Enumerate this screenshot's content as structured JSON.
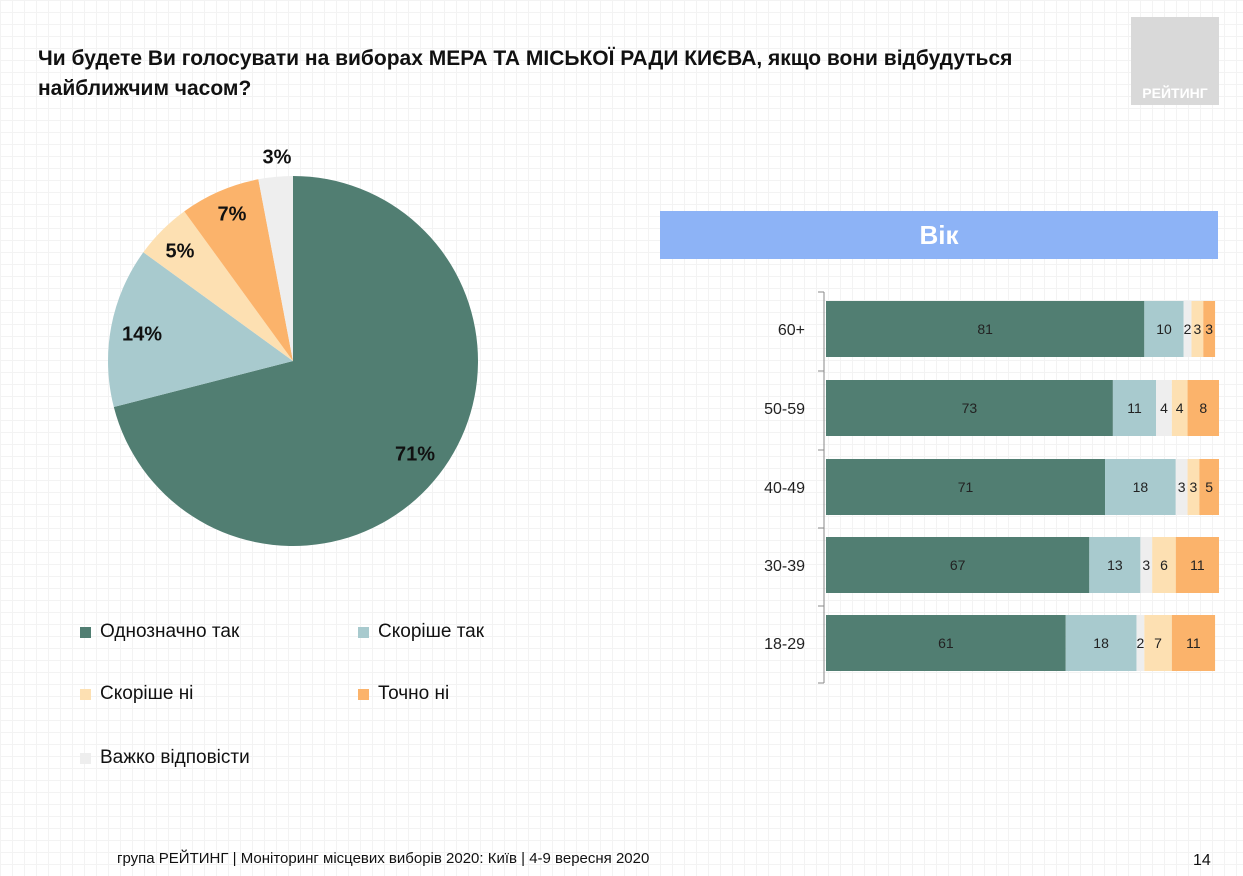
{
  "title": "Чи будете Ви голосувати на виборах МЕРА ТА МІСЬКОЇ РАДИ КИЄВА, якщо вони відбудуться найближчим часом?",
  "logo_text": "РЕЙТИНГ",
  "footer": "група РЕЙТИНГ | Моніторинг місцевих виборів 2020: Київ | 4-9 вересня 2020",
  "page_number": "14",
  "chart_data": [
    {
      "type": "pie",
      "categories": [
        "Однозначно так",
        "Скоріше так",
        "Скоріше ні",
        "Точно ні",
        "Важко відповісти"
      ],
      "values": [
        71,
        14,
        5,
        7,
        3
      ],
      "labels": [
        "71%",
        "14%",
        "5%",
        "7%",
        "3%"
      ],
      "colors": [
        "#517e72",
        "#a8cace",
        "#fde0b2",
        "#fbb36b",
        "#eeeeee"
      ],
      "legend": "bottom"
    },
    {
      "type": "bar",
      "orientation": "horizontal",
      "stacked": true,
      "title": "Вік",
      "categories": [
        "60+",
        "50-59",
        "40-49",
        "30-39",
        "18-29"
      ],
      "series": [
        {
          "name": "Однозначно так",
          "color": "#517e72",
          "values": [
            81,
            73,
            71,
            67,
            61
          ]
        },
        {
          "name": "Скоріше так",
          "color": "#a8cace",
          "values": [
            10,
            11,
            18,
            13,
            18
          ]
        },
        {
          "name": "Важко відповісти",
          "color": "#eeeeee",
          "values": [
            2,
            4,
            3,
            3,
            2
          ]
        },
        {
          "name": "Скоріше ні",
          "color": "#fde0b2",
          "values": [
            3,
            4,
            3,
            6,
            7
          ]
        },
        {
          "name": "Точно ні",
          "color": "#fbb36b",
          "values": [
            3,
            8,
            5,
            11,
            11
          ]
        }
      ]
    }
  ]
}
